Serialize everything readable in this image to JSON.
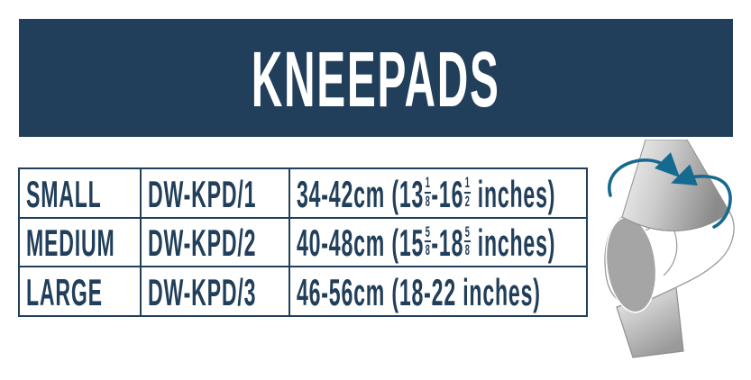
{
  "banner": {
    "title": "KNEEPADS"
  },
  "colors": {
    "navy": "#213f5a",
    "white": "#ffffff",
    "arrow_teal": "#16698f",
    "pad_gray": "#a5a5a5"
  },
  "size_table": {
    "columns": [
      "size",
      "product_code",
      "measurement_range"
    ],
    "rows": [
      {
        "size": "SMALL",
        "code": "DW-KPD/1",
        "measurement": [
          {
            "t": "text",
            "v": "34-42cm (13"
          },
          {
            "t": "frac",
            "n": "1",
            "d": "8"
          },
          {
            "t": "text",
            "v": "-16"
          },
          {
            "t": "frac",
            "n": "1",
            "d": "2"
          },
          {
            "t": "text",
            "v": " inches)"
          }
        ]
      },
      {
        "size": "MEDIUM",
        "code": "DW-KPD/2",
        "measurement": [
          {
            "t": "text",
            "v": "40-48cm (15"
          },
          {
            "t": "frac",
            "n": "5",
            "d": "8"
          },
          {
            "t": "text",
            "v": "-18"
          },
          {
            "t": "frac",
            "n": "5",
            "d": "8"
          },
          {
            "t": "text",
            "v": " inches)"
          }
        ]
      },
      {
        "size": "LARGE",
        "code": "DW-KPD/3",
        "measurement": [
          {
            "t": "text",
            "v": "46-56cm (18-22 inches)"
          }
        ]
      }
    ]
  },
  "illustration": {
    "icon": "knee-pad-circumference-icon",
    "meaning": "measure thigh circumference above knee"
  }
}
